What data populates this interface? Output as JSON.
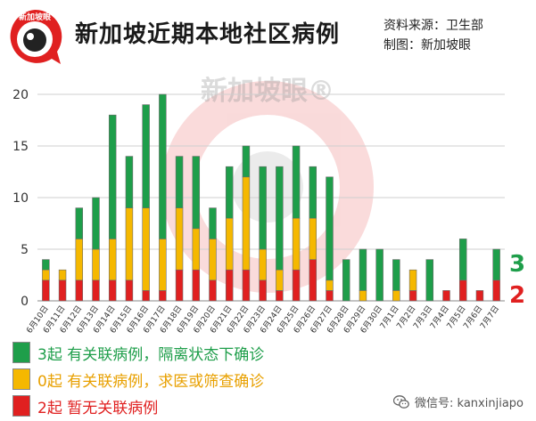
{
  "header": {
    "logo_text": "新加坡眼",
    "title": "新加坡近期本地社区病例",
    "source": "资料来源：卫生部",
    "credit": "制图：新加坡眼"
  },
  "watermark": "新加坡眼®",
  "legend": {
    "items": [
      {
        "text": "3起 有关联病例，隔离状态下确诊",
        "color": "#1e9e4a",
        "text_color": "#1e9e4a"
      },
      {
        "text": "0起 有关联病例，求医或筛查确诊",
        "color": "#f5b800",
        "text_color": "#e8a000"
      },
      {
        "text": "2起 暂无关联病例",
        "color": "#e02020",
        "text_color": "#e02020"
      }
    ]
  },
  "footer": {
    "icon": "wechat-icon",
    "text": "微信号: kanxinjiapo"
  },
  "chart_data": {
    "type": "bar",
    "stacked": true,
    "categories": [
      "6月10日",
      "6月11日",
      "6月12日",
      "6月13日",
      "6月14日",
      "6月15日",
      "6月16日",
      "6月17日",
      "6月18日",
      "6月19日",
      "6月20日",
      "6月21日",
      "6月22日",
      "6月23日",
      "6月24日",
      "6月25日",
      "6月26日",
      "6月27日",
      "6月28日",
      "6月29日",
      "6月30日",
      "7月1日",
      "7月2日",
      "7月3日",
      "7月4日",
      "7月5日",
      "7月6日",
      "7月7日"
    ],
    "series": [
      {
        "color": "#e02020",
        "values": [
          2,
          2,
          2,
          2,
          2,
          2,
          1,
          1,
          3,
          3,
          2,
          3,
          3,
          2,
          1,
          3,
          4,
          1,
          0,
          0,
          0,
          0,
          1,
          0,
          1,
          2,
          1,
          2
        ]
      },
      {
        "color": "#f5b800",
        "values": [
          1,
          1,
          4,
          3,
          4,
          7,
          8,
          5,
          6,
          4,
          4,
          5,
          9,
          3,
          2,
          5,
          4,
          1,
          0,
          1,
          0,
          1,
          2,
          0,
          0,
          0,
          0,
          0
        ]
      },
      {
        "color": "#1e9e4a",
        "values": [
          1,
          0,
          3,
          5,
          12,
          5,
          10,
          14,
          5,
          7,
          3,
          5,
          3,
          8,
          10,
          7,
          5,
          10,
          4,
          4,
          5,
          3,
          0,
          4,
          0,
          4,
          0,
          3
        ]
      }
    ],
    "ylim": [
      0,
      20
    ],
    "yticks": [
      0,
      5,
      10,
      15,
      20
    ],
    "grid": true,
    "annotations": [
      {
        "text": "3",
        "color": "#1e9e4a"
      },
      {
        "text": "2",
        "color": "#e02020"
      }
    ]
  }
}
